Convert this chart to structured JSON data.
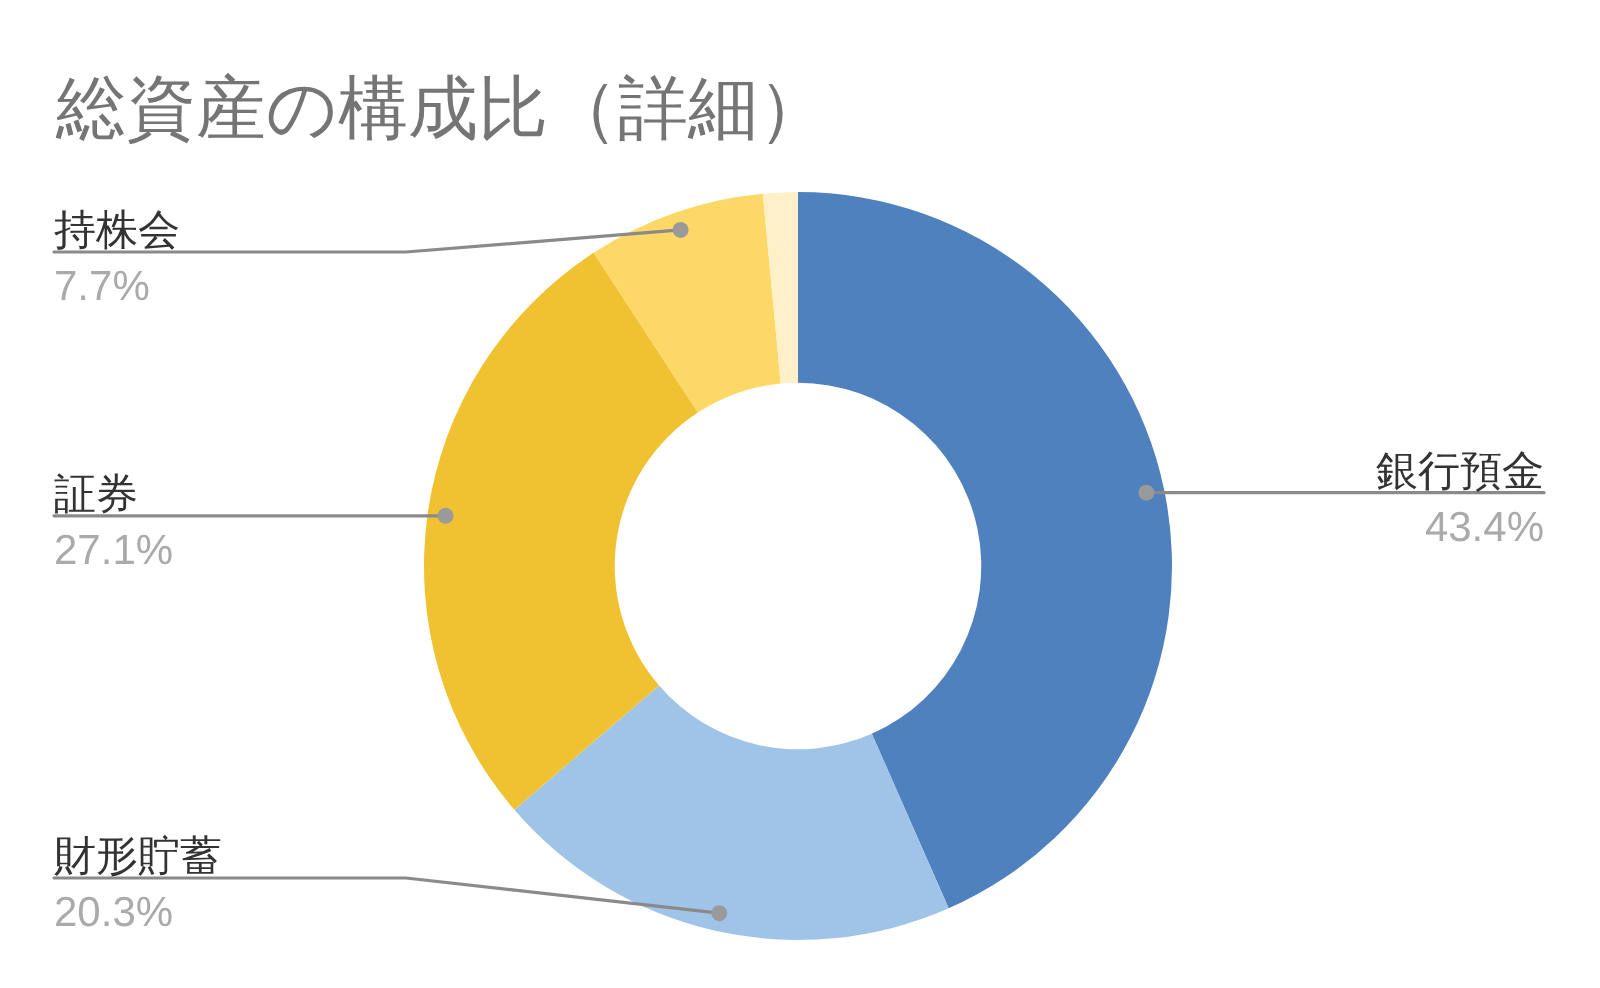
{
  "chart_data": {
    "type": "donut",
    "title": "総資産の構成比（詳細）",
    "categories": [
      "銀行預金",
      "財形貯蓄",
      "証券",
      "持株会",
      null
    ],
    "values": [
      43.4,
      20.3,
      27.1,
      7.7,
      1.5
    ],
    "colors": [
      "#4e81bd",
      "#a0c4e8",
      "#f0c232",
      "#fdd866",
      "#fff0c8"
    ],
    "value_labels": [
      "43.4%",
      "20.3%",
      "27.1%",
      "7.7%",
      null
    ]
  }
}
